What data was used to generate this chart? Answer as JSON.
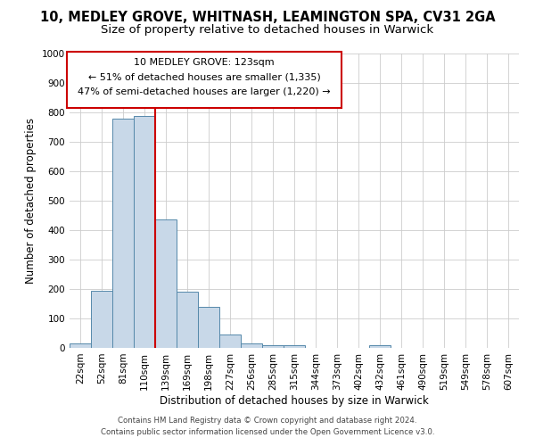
{
  "title": "10, MEDLEY GROVE, WHITNASH, LEAMINGTON SPA, CV31 2GA",
  "subtitle": "Size of property relative to detached houses in Warwick",
  "xlabel": "Distribution of detached houses by size in Warwick",
  "ylabel": "Number of detached properties",
  "categories": [
    "22sqm",
    "52sqm",
    "81sqm",
    "110sqm",
    "139sqm",
    "169sqm",
    "198sqm",
    "227sqm",
    "256sqm",
    "285sqm",
    "315sqm",
    "344sqm",
    "373sqm",
    "402sqm",
    "432sqm",
    "461sqm",
    "490sqm",
    "519sqm",
    "549sqm",
    "578sqm",
    "607sqm"
  ],
  "values": [
    15,
    195,
    780,
    787,
    435,
    190,
    140,
    45,
    15,
    10,
    10,
    0,
    0,
    0,
    10,
    0,
    0,
    0,
    0,
    0,
    0
  ],
  "bar_color": "#c8d8e8",
  "bar_edge_color": "#5588aa",
  "grid_color": "#cccccc",
  "annotation_box_color": "#cc0000",
  "property_line_color": "#cc0000",
  "property_bin_index": 3,
  "annotation_title": "10 MEDLEY GROVE: 123sqm",
  "annotation_line2": "← 51% of detached houses are smaller (1,335)",
  "annotation_line3": "47% of semi-detached houses are larger (1,220) →",
  "footer_line1": "Contains HM Land Registry data © Crown copyright and database right 2024.",
  "footer_line2": "Contains public sector information licensed under the Open Government Licence v3.0.",
  "ylim": [
    0,
    1000
  ],
  "yticks": [
    0,
    100,
    200,
    300,
    400,
    500,
    600,
    700,
    800,
    900,
    1000
  ],
  "background_color": "#ffffff",
  "title_fontsize": 10.5,
  "subtitle_fontsize": 9.5,
  "axis_label_fontsize": 8.5,
  "tick_fontsize": 7.5,
  "footer_fontsize": 6.2,
  "annotation_fontsize": 8
}
